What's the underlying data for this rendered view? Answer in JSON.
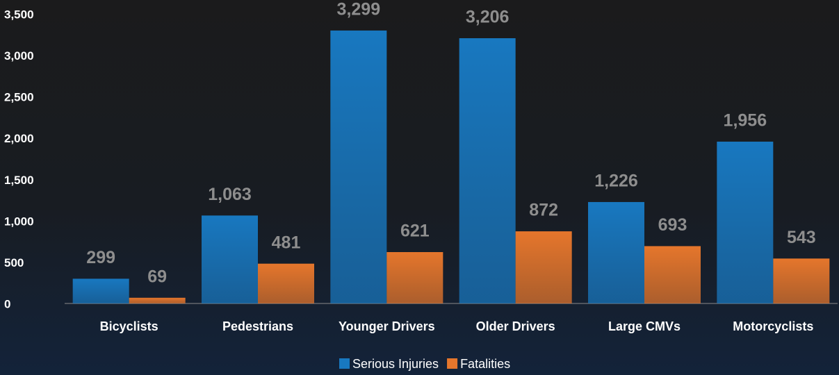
{
  "chart_data": {
    "type": "bar",
    "categories": [
      "Bicyclists",
      "Pedestrians",
      "Younger Drivers",
      "Older Drivers",
      "Large CMVs",
      "Motorcyclists"
    ],
    "series": [
      {
        "name": "Serious Injuries",
        "color": "#1878c0",
        "values": [
          299,
          1063,
          3299,
          3206,
          1226,
          1956
        ],
        "value_labels": [
          "299",
          "1,063",
          "3,299",
          "3,206",
          "1,226",
          "1,956"
        ]
      },
      {
        "name": "Fatalities",
        "color": "#e5762c",
        "values": [
          69,
          481,
          621,
          872,
          693,
          543
        ],
        "value_labels": [
          "69",
          "481",
          "621",
          "872",
          "693",
          "543"
        ]
      }
    ],
    "ylim": [
      0,
      3500
    ],
    "yticks": [
      0,
      500,
      {
        "value": 1000,
        "label": "1,000"
      },
      {
        "value": 1500,
        "label": "1,500"
      },
      {
        "value": 2000,
        "label": "2,000"
      },
      {
        "value": 2500,
        "label": "2,500"
      },
      {
        "value": 3000,
        "label": "3,000"
      },
      {
        "value": 3500,
        "label": "3,500"
      }
    ],
    "grid": false,
    "legend": "bottom"
  }
}
